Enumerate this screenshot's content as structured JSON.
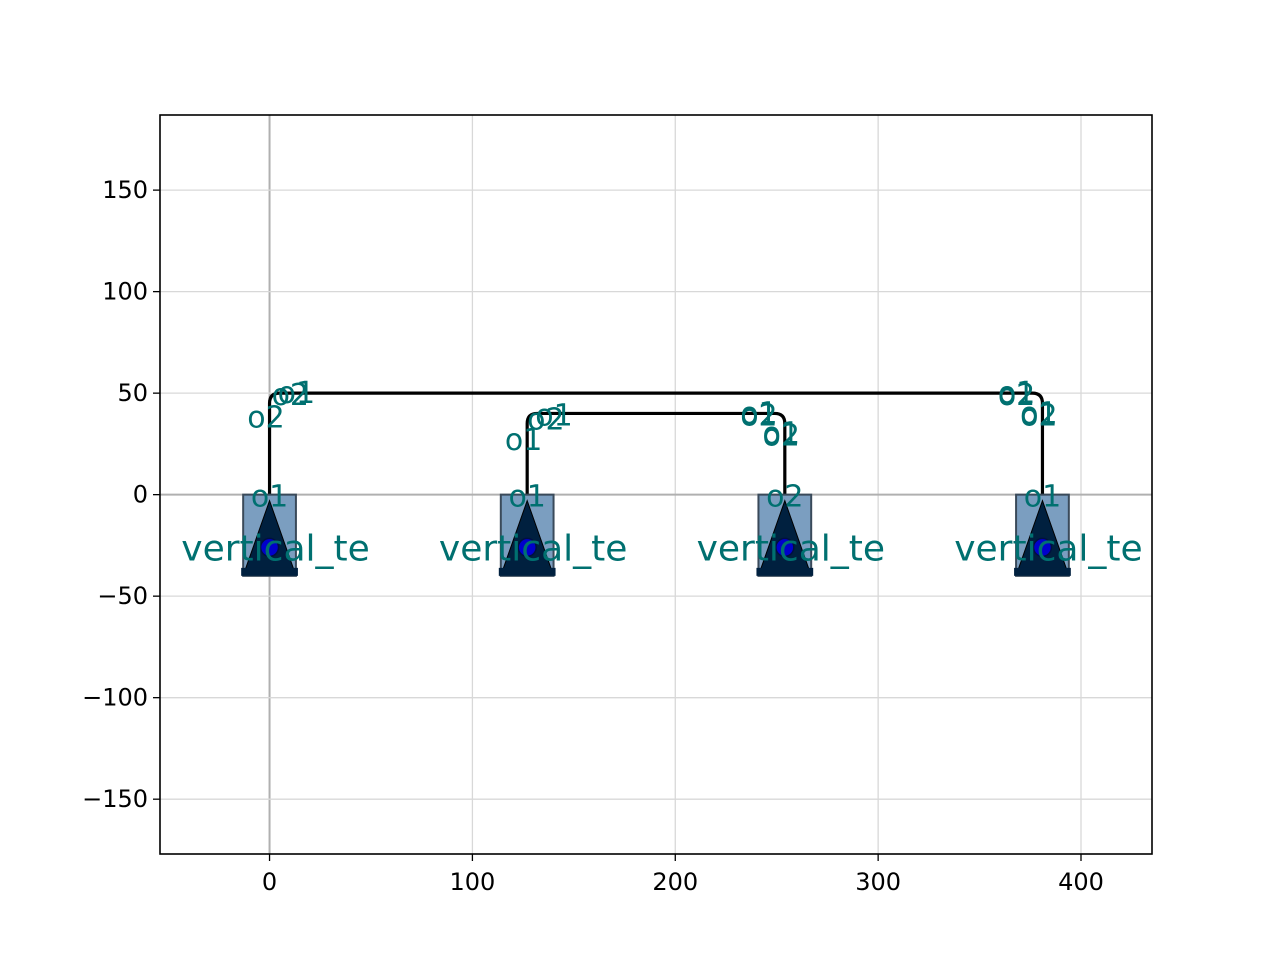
{
  "chart_data": {
    "type": "diagram",
    "title": "",
    "xlabel": "",
    "ylabel": "",
    "xlim": [
      -54,
      435
    ],
    "ylim": [
      -177,
      187
    ],
    "grid": true,
    "x_ticks": [
      {
        "value": 0,
        "label": "0"
      },
      {
        "value": 100,
        "label": "100"
      },
      {
        "value": 200,
        "label": "200"
      },
      {
        "value": 300,
        "label": "300"
      },
      {
        "value": 400,
        "label": "400"
      }
    ],
    "y_ticks": [
      {
        "value": 150,
        "label": "150"
      },
      {
        "value": 100,
        "label": "100"
      },
      {
        "value": 50,
        "label": "50"
      },
      {
        "value": 0,
        "label": "0"
      },
      {
        "value": -50,
        "label": "−50"
      },
      {
        "value": -100,
        "label": "−100"
      },
      {
        "value": -150,
        "label": "−150"
      }
    ],
    "components": [
      {
        "label": "vertical_te",
        "x": 0,
        "port_label": "o1"
      },
      {
        "label": "vertical_te",
        "x": 127,
        "port_label": "o1"
      },
      {
        "label": "vertical_te",
        "x": 254,
        "port_label": "o2"
      },
      {
        "label": "vertical_te",
        "x": 381,
        "port_label": "o1"
      }
    ],
    "component_box": {
      "half_width": 13,
      "top": 0,
      "bottom": -40
    },
    "routes": [
      {
        "points": [
          [
            0,
            0
          ],
          [
            0,
            50
          ],
          [
            381,
            50
          ],
          [
            381,
            0
          ]
        ],
        "radius": 5
      },
      {
        "points": [
          [
            127,
            0
          ],
          [
            127,
            40
          ],
          [
            254,
            40
          ],
          [
            254,
            0
          ]
        ],
        "radius": 5
      }
    ],
    "bend_port_labels": [
      {
        "x": -11,
        "y": 39,
        "text": "o2"
      },
      {
        "x": 1,
        "y": 50,
        "text": "o2"
      },
      {
        "x": 4,
        "y": 51,
        "text": "o1"
      },
      {
        "x": 116,
        "y": 28,
        "text": "o1"
      },
      {
        "x": 127,
        "y": 38,
        "text": "o2"
      },
      {
        "x": 131,
        "y": 40,
        "text": "o1"
      },
      {
        "x": 232,
        "y": 40,
        "text": "o2"
      },
      {
        "x": 232,
        "y": 41,
        "text": "o1"
      },
      {
        "x": 243,
        "y": 30,
        "text": "o2"
      },
      {
        "x": 243,
        "y": 31,
        "text": "o1"
      },
      {
        "x": 359,
        "y": 50,
        "text": "o2"
      },
      {
        "x": 359,
        "y": 51,
        "text": "o1"
      },
      {
        "x": 370,
        "y": 40,
        "text": "o2"
      },
      {
        "x": 370,
        "y": 41,
        "text": "o1"
      }
    ],
    "colors": {
      "route": "#000000",
      "box_fill": "#7b9ec0",
      "box_edge": "#3a4a5a",
      "arrow": "#00203f",
      "dot": "#0000cc",
      "label": "#007070",
      "grid": "#d8d8d8",
      "zero_axis": "#b0b0b0"
    }
  }
}
